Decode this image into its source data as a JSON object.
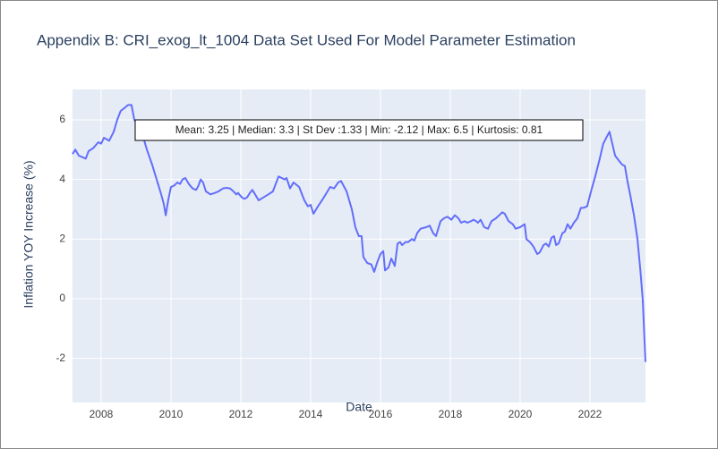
{
  "chart_data": {
    "type": "line",
    "title": "Appendix B: CRI_exog_lt_1004 Data Set Used For Model Parameter Estimation",
    "x_label": "Date",
    "y_label": "Inflation YOY Increase (%)",
    "annotation": "Mean: 3.25 | Median: 3.3 | St Dev :1.33 | Min: -2.12 | Max: 6.5 | Kurtosis: 0.81",
    "xlim": [
      2007.18,
      2023.59
    ],
    "ylim": [
      -3.48,
      7.02
    ],
    "xticks": [
      2008,
      2010,
      2012,
      2014,
      2016,
      2018,
      2020,
      2022
    ],
    "yticks": [
      -2,
      0,
      2,
      4,
      6
    ],
    "grid": true,
    "x": [
      2007.18,
      2007.26,
      2007.36,
      2007.46,
      2007.56,
      2007.64,
      2007.77,
      2007.92,
      2008.0,
      2008.08,
      2008.23,
      2008.36,
      2008.46,
      2008.56,
      2008.67,
      2008.77,
      2008.87,
      2008.95,
      2009.08,
      2009.21,
      2009.31,
      2009.46,
      2009.59,
      2009.72,
      2009.79,
      2009.85,
      2009.92,
      2010.0,
      2010.1,
      2010.18,
      2010.26,
      2010.33,
      2010.41,
      2010.51,
      2010.62,
      2010.72,
      2010.79,
      2010.85,
      2010.92,
      2011.0,
      2011.13,
      2011.26,
      2011.36,
      2011.49,
      2011.59,
      2011.69,
      2011.79,
      2011.87,
      2011.92,
      2012.03,
      2012.1,
      2012.18,
      2012.26,
      2012.33,
      2012.41,
      2012.51,
      2012.79,
      2012.92,
      2013.08,
      2013.26,
      2013.31,
      2013.41,
      2013.51,
      2013.67,
      2013.82,
      2013.92,
      2014.0,
      2014.08,
      2014.21,
      2014.38,
      2014.56,
      2014.67,
      2014.79,
      2014.87,
      2015.03,
      2015.18,
      2015.28,
      2015.38,
      2015.46,
      2015.51,
      2015.62,
      2015.74,
      2015.82,
      2015.9,
      2016.0,
      2016.08,
      2016.13,
      2016.23,
      2016.31,
      2016.41,
      2016.49,
      2016.56,
      2016.62,
      2016.72,
      2016.79,
      2016.9,
      2016.97,
      2017.05,
      2017.15,
      2017.31,
      2017.41,
      2017.51,
      2017.59,
      2017.72,
      2017.82,
      2017.92,
      2018.03,
      2018.13,
      2018.23,
      2018.31,
      2018.41,
      2018.49,
      2018.59,
      2018.67,
      2018.74,
      2018.79,
      2018.87,
      2018.97,
      2019.08,
      2019.18,
      2019.31,
      2019.49,
      2019.56,
      2019.67,
      2019.79,
      2019.87,
      2020.0,
      2020.13,
      2020.18,
      2020.28,
      2020.38,
      2020.49,
      2020.56,
      2020.67,
      2020.74,
      2020.82,
      2020.9,
      2020.97,
      2021.03,
      2021.1,
      2021.21,
      2021.28,
      2021.36,
      2021.44,
      2021.54,
      2021.64,
      2021.74,
      2021.82,
      2021.92,
      2022.03,
      2022.15,
      2022.28,
      2022.38,
      2022.49,
      2022.56,
      2022.64,
      2022.72,
      2022.85,
      2022.92,
      2023.0,
      2023.08,
      2023.15,
      2023.26,
      2023.36,
      2023.44,
      2023.51,
      2023.59
    ],
    "series": [
      {
        "name": "Inflation",
        "color": "#636efa",
        "values": [
          4.85,
          5.0,
          4.8,
          4.75,
          4.7,
          4.95,
          5.05,
          5.25,
          5.2,
          5.4,
          5.3,
          5.6,
          6.0,
          6.3,
          6.4,
          6.5,
          6.5,
          6.0,
          5.8,
          5.4,
          5.0,
          4.5,
          4.0,
          3.5,
          3.2,
          2.8,
          3.3,
          3.75,
          3.8,
          3.9,
          3.85,
          4.0,
          4.05,
          3.85,
          3.7,
          3.65,
          3.8,
          4.0,
          3.9,
          3.6,
          3.5,
          3.55,
          3.6,
          3.7,
          3.72,
          3.7,
          3.6,
          3.5,
          3.55,
          3.4,
          3.35,
          3.4,
          3.55,
          3.65,
          3.5,
          3.3,
          3.5,
          3.6,
          4.1,
          4.0,
          4.05,
          3.7,
          3.9,
          3.75,
          3.3,
          3.1,
          3.15,
          2.85,
          3.1,
          3.4,
          3.75,
          3.7,
          3.9,
          3.95,
          3.6,
          3.0,
          2.4,
          2.1,
          2.1,
          1.4,
          1.2,
          1.15,
          0.9,
          1.2,
          1.5,
          1.6,
          0.95,
          1.05,
          1.35,
          1.1,
          1.85,
          1.9,
          1.8,
          1.9,
          1.9,
          2.0,
          1.95,
          2.2,
          2.35,
          2.4,
          2.45,
          2.2,
          2.1,
          2.6,
          2.7,
          2.75,
          2.65,
          2.8,
          2.7,
          2.55,
          2.6,
          2.55,
          2.6,
          2.65,
          2.6,
          2.55,
          2.65,
          2.4,
          2.35,
          2.6,
          2.7,
          2.9,
          2.85,
          2.6,
          2.5,
          2.35,
          2.4,
          2.5,
          2.0,
          1.9,
          1.75,
          1.5,
          1.55,
          1.8,
          1.85,
          1.75,
          2.05,
          2.1,
          1.8,
          1.85,
          2.2,
          2.25,
          2.5,
          2.35,
          2.55,
          2.7,
          3.05,
          3.05,
          3.1,
          3.6,
          4.1,
          4.7,
          5.2,
          5.45,
          5.6,
          5.2,
          4.8,
          4.6,
          4.5,
          4.45,
          3.9,
          3.5,
          2.8,
          2.0,
          1.0,
          0.0,
          -2.12
        ]
      }
    ]
  }
}
